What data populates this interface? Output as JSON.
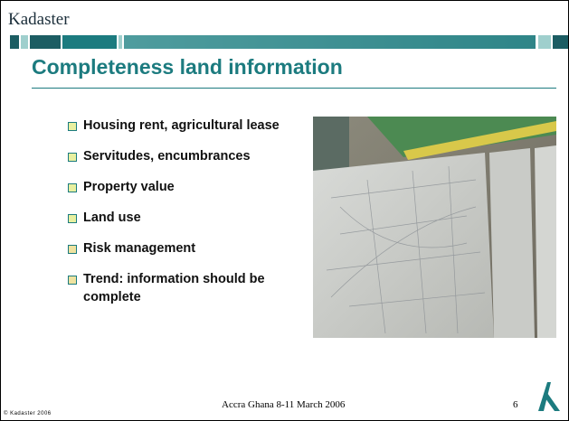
{
  "header": {
    "logo": "Kadaster"
  },
  "title": "Completeness land information",
  "bullets": [
    "Housing rent, agricultural lease",
    "Servitudes, encumbrances",
    "Property value",
    "Land use",
    "Risk management",
    "Trend: information should be complete"
  ],
  "footer": {
    "copyright": "© Kadaster 2006",
    "event": "Accra Ghana 8-11 March 2006",
    "page_number": "6"
  }
}
